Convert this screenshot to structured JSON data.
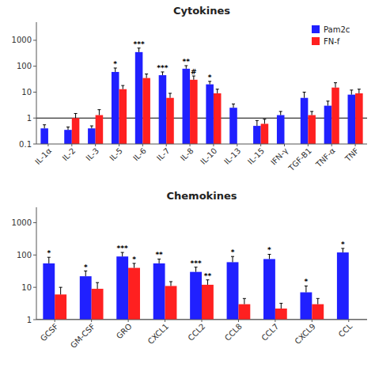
{
  "chart_data": [
    {
      "type": "bar",
      "title": "Cytokines",
      "categories": [
        "IL-1α",
        "IL-2",
        "IL-3",
        "IL-5",
        "IL-6",
        "IL-7",
        "IL-8",
        "IL-10",
        "IL-13",
        "IL-15",
        "IFN-γ",
        "TGF-B1",
        "TNF-α",
        "TNF"
      ],
      "series": [
        {
          "name": "Pam2c",
          "color": "#2020FF",
          "values": [
            0.4,
            0.35,
            0.4,
            60,
            350,
            45,
            80,
            20,
            2.5,
            0.5,
            1.3,
            6,
            3,
            8
          ],
          "errors": [
            0.15,
            0.1,
            0.1,
            25,
            150,
            15,
            25,
            6,
            1.0,
            0.3,
            0.5,
            4,
            1.5,
            4
          ],
          "significance": [
            null,
            null,
            null,
            "*",
            "***",
            "***",
            "**",
            "*",
            null,
            null,
            null,
            null,
            null,
            null
          ]
        },
        {
          "name": "FN-f",
          "color": "#FF2020",
          "values": [
            null,
            1.0,
            1.3,
            13,
            35,
            6,
            30,
            9,
            null,
            0.6,
            null,
            1.3,
            15,
            9
          ],
          "errors": [
            null,
            0.5,
            0.8,
            5,
            15,
            3,
            12,
            4,
            null,
            0.3,
            null,
            0.5,
            8,
            4
          ],
          "significance": [
            null,
            null,
            null,
            null,
            null,
            null,
            "#",
            null,
            null,
            null,
            null,
            null,
            null,
            null
          ]
        }
      ],
      "log": "y",
      "ylim": [
        0.1,
        5000
      ],
      "yticks": [
        0.1,
        1,
        10,
        100,
        1000
      ],
      "reference_line": 1,
      "legend": "upper right"
    },
    {
      "type": "bar",
      "title": "Chemokines",
      "categories": [
        "GCSF",
        "GM-CSF",
        "GRO",
        "CXCL1",
        "CCL2",
        "CCL8",
        "CCL7",
        "CXCL9",
        "CCL"
      ],
      "series": [
        {
          "name": "Pam2c",
          "color": "#2020FF",
          "values": [
            55,
            22,
            90,
            55,
            30,
            60,
            75,
            7,
            120
          ],
          "errors": [
            30,
            10,
            30,
            20,
            12,
            30,
            30,
            4,
            40
          ],
          "significance": [
            "*",
            "*",
            "***",
            "**",
            "***",
            "*",
            "*",
            "*",
            "*"
          ]
        },
        {
          "name": "FN-f",
          "color": "#FF2020",
          "values": [
            6,
            9,
            40,
            11,
            12,
            3,
            2.2,
            3,
            null
          ],
          "errors": [
            4,
            5,
            15,
            4,
            5,
            1.5,
            1,
            1.5,
            null
          ],
          "significance": [
            null,
            null,
            "*",
            null,
            "**",
            null,
            null,
            null,
            null
          ]
        }
      ],
      "log": "y",
      "ylim": [
        1,
        3000
      ],
      "yticks": [
        1,
        10,
        100,
        1000
      ],
      "reference_line": 1
    }
  ]
}
